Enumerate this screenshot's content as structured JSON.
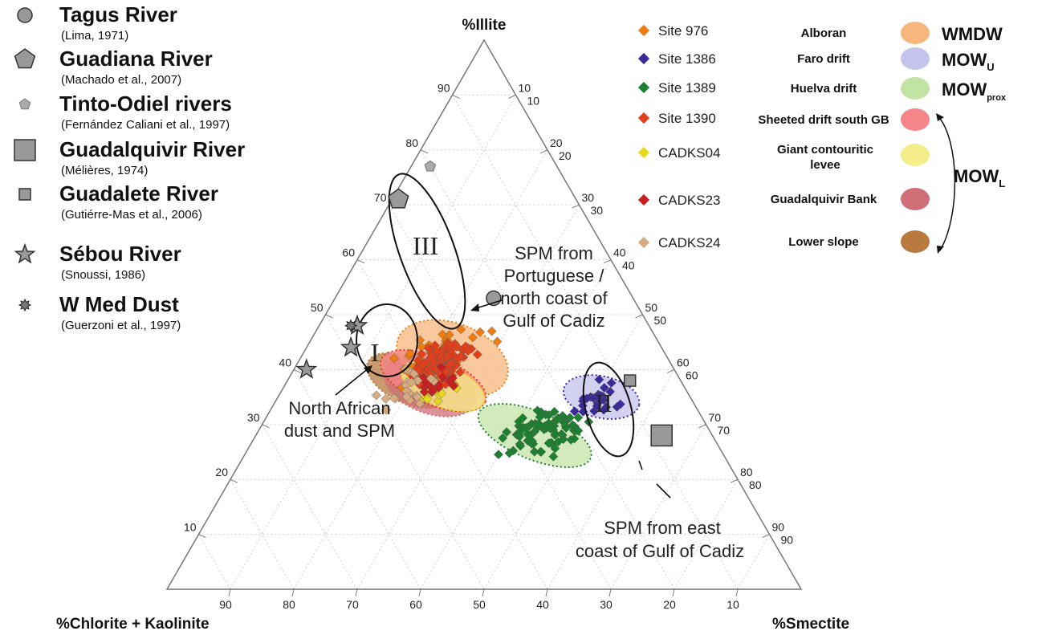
{
  "chart_data": {
    "type": "scatter",
    "axes": {
      "top": "%Illite",
      "left": "%Chlorite + Kaolinite",
      "right": "%Smectite"
    },
    "ticks": {
      "illite": [
        "10",
        "20",
        "30",
        "40",
        "50",
        "60",
        "70",
        "80",
        "90"
      ],
      "left": [
        "10",
        "20",
        "30",
        "40",
        "50",
        "60",
        "70",
        "80",
        "90"
      ],
      "right": [
        "10",
        "20",
        "30",
        "40",
        "50",
        "60",
        "70",
        "80",
        "90"
      ],
      "bottom": [
        "90",
        "80",
        "70",
        "60",
        "50",
        "40",
        "30",
        "20",
        "10"
      ]
    },
    "sources": [
      {
        "name": "Tagus River",
        "ref": "(Lima, 1971)",
        "marker": "circle",
        "illite": 53,
        "smectite": 25
      },
      {
        "name": "Guadiana River",
        "ref": "(Machado et al., 2007)",
        "marker": "pentagon",
        "illite": 71,
        "smectite": 1
      },
      {
        "name": "Tinto-Odiel rivers",
        "ref": "(Fernández Caliani et al., 1997)",
        "marker": "small-pentagon",
        "illite": 77,
        "smectite": 3
      },
      {
        "name": "Guadalquivir River",
        "ref": "(Mélières, 1974)",
        "marker": "square",
        "illite": 28,
        "smectite": 64
      },
      {
        "name": "Guadalete River",
        "ref": "(Gutiérre-Mas et al., 2006)",
        "marker": "small-square",
        "illite": 38,
        "smectite": 54
      },
      {
        "name": "Sébou River",
        "ref": "(Snoussi, 1986)",
        "marker": "star",
        "illite": [
          48,
          44,
          40
        ],
        "smectite": [
          6,
          7,
          2
        ]
      },
      {
        "name": "W Med Dust",
        "ref": "(Guerzoni et al., 1997)",
        "marker": "burst",
        "illite": 48,
        "smectite": 5
      }
    ],
    "sites": [
      {
        "name": "Site 976",
        "color": "#ee7d11",
        "illite": 43,
        "smectite": 22,
        "n": 55
      },
      {
        "name": "Site 1386",
        "color": "#3a2a9a",
        "illite": 35,
        "smectite": 51,
        "n": 26
      },
      {
        "name": "Site 1389",
        "color": "#1d7f30",
        "illite": 29,
        "smectite": 45,
        "n": 85
      },
      {
        "name": "Site 1390",
        "color": "#e2401c",
        "illite": 41,
        "smectite": 23,
        "n": 110
      },
      {
        "name": "CADKS04",
        "color": "#e6d81c",
        "illite": 36,
        "smectite": 25,
        "n": 12
      },
      {
        "name": "CADKS23",
        "color": "#c8201e",
        "illite": 38,
        "smectite": 24,
        "n": 20
      },
      {
        "name": "CADKS24",
        "color": "#d7aa82",
        "illite": 37,
        "smectite": 19,
        "n": 25
      }
    ],
    "water_masses": [
      {
        "area": "Alboran",
        "color": "#f7b77c",
        "mass": "WMDW"
      },
      {
        "area": "Faro drift",
        "color": "#c3c3eb",
        "mass": "MOW",
        "sub": "U"
      },
      {
        "area": "Huelva drift",
        "color": "#c3e3a5",
        "mass": "MOW",
        "sub": "prox"
      },
      {
        "area": "Sheeted drift south GB",
        "color": "#f6868a",
        "mass": ""
      },
      {
        "area": "Giant contouritic",
        "area2": "levee",
        "color": "#f3ed8a",
        "mass": ""
      },
      {
        "area": "Guadalquivir Bank",
        "color": "#d16f78",
        "mass": ""
      },
      {
        "area": "Lower slope",
        "color": "#b87a3e",
        "mass": ""
      }
    ],
    "mowl": {
      "mass": "MOW",
      "sub": "L"
    },
    "annotations": {
      "spm_portuguese": [
        "SPM from",
        "Portuguese /",
        "north coast of",
        "Gulf of Cadiz"
      ],
      "north_african": [
        "North African",
        "dust and SPM"
      ],
      "spm_east": [
        "SPM from east",
        "coast of Gulf of Cadiz"
      ],
      "groups": [
        "I",
        "II",
        "III"
      ]
    }
  }
}
